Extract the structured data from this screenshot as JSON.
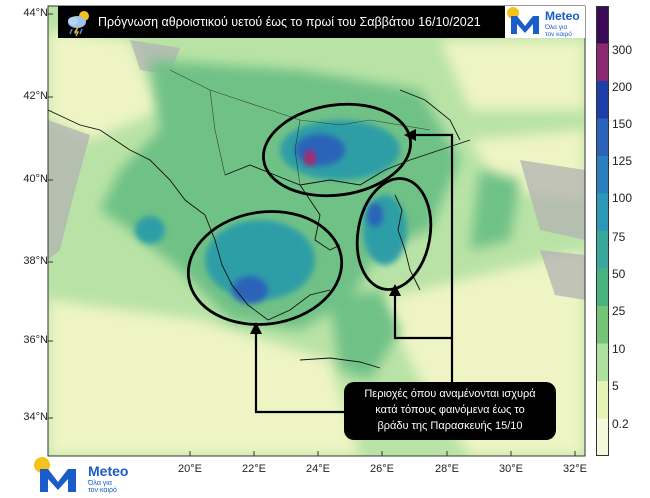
{
  "map": {
    "title": "Πρόγνωση αθροιστικού υετού έως το πρωί του Σαββάτου 16/10/2021",
    "lat_labels": [
      "44°N",
      "42°N",
      "40°N",
      "38°N",
      "36°N",
      "34°N"
    ],
    "lon_labels": [
      "20°E",
      "22°E",
      "24°E",
      "26°E",
      "28°E",
      "30°E",
      "32°E"
    ],
    "callout_lines": [
      "Περιοχές όπου αναμένονται ισχυρά",
      "κατά τόπους φαινόμενα έως το",
      "βράδυ της Παρασκευής 15/10"
    ],
    "highlight_regions": [
      "Northern Greece (Macedonia / Thrace)",
      "Western & Southern Greece / Peloponnese",
      "Northeast Aegean islands"
    ]
  },
  "legend": {
    "levels": [
      "300",
      "200",
      "150",
      "125",
      "100",
      "75",
      "50",
      "25",
      "10",
      "5",
      "0.2"
    ],
    "colors": [
      "#3b0a56",
      "#8a2a6e",
      "#1e3fa8",
      "#2a63b8",
      "#2b7fbf",
      "#2d97b7",
      "#3aa79c",
      "#48b37e",
      "#74c478",
      "#aee0a0",
      "#e4f2b4",
      "#f6f8dc"
    ]
  },
  "brand": {
    "name": "Meteo",
    "tagline_line1": "Όλα για",
    "tagline_line2": "τον καιρό",
    "accent": "#1a5cc8",
    "sun": "#f5c21b"
  }
}
